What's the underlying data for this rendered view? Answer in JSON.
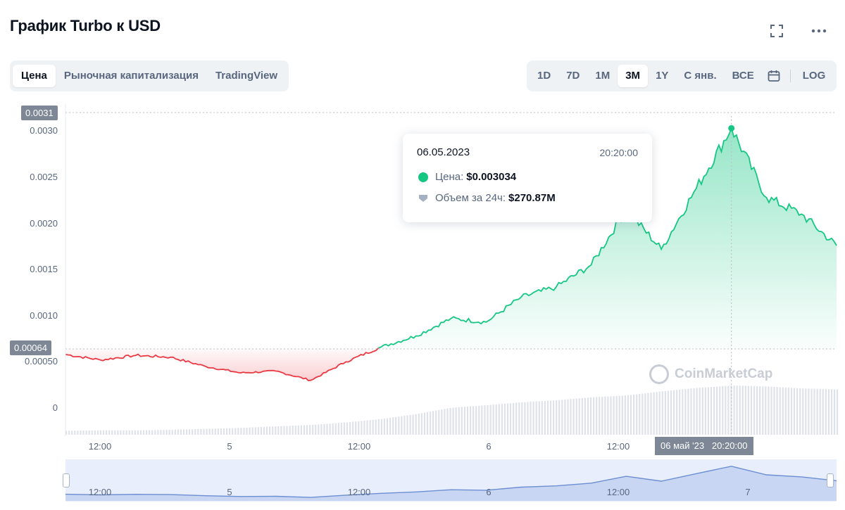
{
  "header": {
    "title": "График Turbo к USD",
    "fullscreen_icon": "expand-icon",
    "more_icon": "more-dots-icon"
  },
  "view_tabs": [
    {
      "label": "Цена",
      "active": true
    },
    {
      "label": "Рыночная капитализация",
      "active": false
    },
    {
      "label": "TradingView",
      "active": false
    }
  ],
  "range_tabs": [
    {
      "label": "1D",
      "active": false
    },
    {
      "label": "7D",
      "active": false
    },
    {
      "label": "1M",
      "active": false
    },
    {
      "label": "3M",
      "active": true
    },
    {
      "label": "1Y",
      "active": false
    },
    {
      "label": "С янв.",
      "active": false
    },
    {
      "label": "ВСЕ",
      "active": false
    }
  ],
  "range_calendar_icon": "calendar-icon",
  "range_log_label": "LOG",
  "tooltip": {
    "date": "06.05.2023",
    "time": "20:20:00",
    "price_label": "Цена:",
    "price_value": "$0.003034",
    "volume_label": "Объем за 24ч:",
    "volume_value": "$270.87M"
  },
  "crosshair": {
    "price_badge": "0.0031",
    "open_badge": "0.00064",
    "time_badge": "06 май '23   20:20:00"
  },
  "watermark": "CoinMarketCap",
  "colors": {
    "up": "#16c784",
    "down": "#ea3943",
    "badge": "#7d8795",
    "navigator": "#6c8ed3"
  },
  "chart_data": {
    "type": "area",
    "title": "График Turbo к USD",
    "ylim": [
      0,
      0.0032
    ],
    "ticks_y": [
      "0.0030",
      "0.0025",
      "0.0020",
      "0.0015",
      "0.0010",
      "0.00050",
      "0"
    ],
    "ticks_x": [
      "12:00",
      "5",
      "12:00",
      "6",
      "12:00"
    ],
    "navigator_ticks": [
      "12:00",
      "5",
      "12:00",
      "6",
      "12:00",
      "7"
    ],
    "baseline_open": 0.00064,
    "x": [
      "04 12:00",
      "04 15:00",
      "04 18:00",
      "04 21:00",
      "05 00:00",
      "05 03:00",
      "05 06:00",
      "05 09:00",
      "05 12:00",
      "05 15:00",
      "05 18:00",
      "05 21:00",
      "06 00:00",
      "06 03:00",
      "06 06:00",
      "06 09:00",
      "06 12:00",
      "06 15:00",
      "06 18:00",
      "06 20:20",
      "06 22:00",
      "07 00:00",
      "07 03:00"
    ],
    "series": [
      {
        "values": [
          0.00058,
          0.00052,
          0.00057,
          0.00055,
          0.00045,
          0.00038,
          0.0004,
          0.0003,
          0.0005,
          0.00066,
          0.00078,
          0.00097,
          0.00093,
          0.0012,
          0.00131,
          0.00155,
          0.00215,
          0.00172,
          0.00238,
          0.00303,
          0.00228,
          0.0021,
          0.00176
        ]
      },
      {
        "values": [
          8,
          9,
          9,
          10,
          12,
          14,
          17,
          20,
          25,
          32,
          42,
          55,
          60,
          66,
          70,
          76,
          80,
          88,
          95,
          100,
          98,
          94,
          92
        ]
      }
    ],
    "grid": false,
    "legend": "none"
  }
}
